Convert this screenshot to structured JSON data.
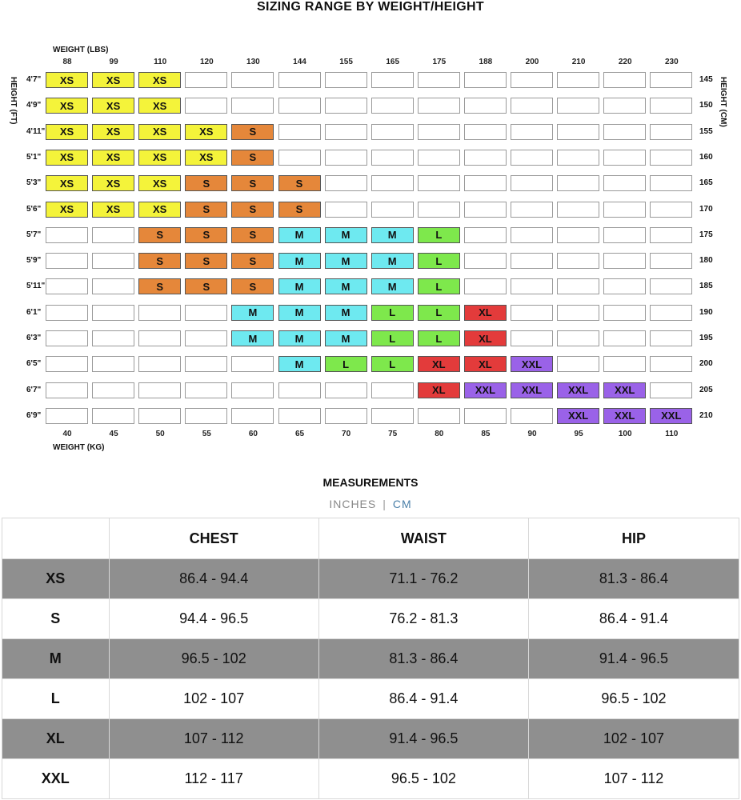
{
  "title": "SIZING RANGE BY WEIGHT/HEIGHT",
  "labels": {
    "weight_lbs": "WEIGHT (LBS)",
    "weight_kg": "WEIGHT (KG)",
    "height_ft": "HEIGHT (FT)",
    "height_cm": "HEIGHT (CM)"
  },
  "colors": {
    "XS": "#f4f33a",
    "S": "#e5873a",
    "M": "#6ee9f0",
    "L": "#7ee84c",
    "XL": "#e33b3b",
    "XXL": "#9a62e8",
    "empty": "#ffffff"
  },
  "lbs": [
    "88",
    "99",
    "110",
    "120",
    "130",
    "144",
    "155",
    "165",
    "175",
    "188",
    "200",
    "210",
    "220",
    "230"
  ],
  "kg": [
    "40",
    "45",
    "50",
    "55",
    "60",
    "65",
    "70",
    "75",
    "80",
    "85",
    "90",
    "95",
    "100",
    "110"
  ],
  "rows": [
    {
      "ft": "4'7\"",
      "cm": "145",
      "cells": [
        "XS",
        "XS",
        "XS",
        "",
        "",
        "",
        "",
        "",
        "",
        "",
        "",
        "",
        "",
        ""
      ]
    },
    {
      "ft": "4'9\"",
      "cm": "150",
      "cells": [
        "XS",
        "XS",
        "XS",
        "",
        "",
        "",
        "",
        "",
        "",
        "",
        "",
        "",
        "",
        ""
      ]
    },
    {
      "ft": "4'11\"",
      "cm": "155",
      "cells": [
        "XS",
        "XS",
        "XS",
        "XS",
        "S",
        "",
        "",
        "",
        "",
        "",
        "",
        "",
        "",
        ""
      ]
    },
    {
      "ft": "5'1\"",
      "cm": "160",
      "cells": [
        "XS",
        "XS",
        "XS",
        "XS",
        "S",
        "",
        "",
        "",
        "",
        "",
        "",
        "",
        "",
        ""
      ]
    },
    {
      "ft": "5'3\"",
      "cm": "165",
      "cells": [
        "XS",
        "XS",
        "XS",
        "S",
        "S",
        "S",
        "",
        "",
        "",
        "",
        "",
        "",
        "",
        ""
      ]
    },
    {
      "ft": "5'6\"",
      "cm": "170",
      "cells": [
        "XS",
        "XS",
        "XS",
        "S",
        "S",
        "S",
        "",
        "",
        "",
        "",
        "",
        "",
        "",
        ""
      ]
    },
    {
      "ft": "5'7\"",
      "cm": "175",
      "cells": [
        "",
        "",
        "S",
        "S",
        "S",
        "M",
        "M",
        "M",
        "L",
        "",
        "",
        "",
        "",
        ""
      ]
    },
    {
      "ft": "5'9\"",
      "cm": "180",
      "cells": [
        "",
        "",
        "S",
        "S",
        "S",
        "M",
        "M",
        "M",
        "L",
        "",
        "",
        "",
        "",
        ""
      ]
    },
    {
      "ft": "5'11\"",
      "cm": "185",
      "cells": [
        "",
        "",
        "S",
        "S",
        "S",
        "M",
        "M",
        "M",
        "L",
        "",
        "",
        "",
        "",
        ""
      ]
    },
    {
      "ft": "6'1\"",
      "cm": "190",
      "cells": [
        "",
        "",
        "",
        "",
        "M",
        "M",
        "M",
        "L",
        "L",
        "XL",
        "",
        "",
        "",
        ""
      ]
    },
    {
      "ft": "6'3\"",
      "cm": "195",
      "cells": [
        "",
        "",
        "",
        "",
        "M",
        "M",
        "M",
        "L",
        "L",
        "XL",
        "",
        "",
        "",
        ""
      ]
    },
    {
      "ft": "6'5\"",
      "cm": "200",
      "cells": [
        "",
        "",
        "",
        "",
        "",
        "M",
        "L",
        "L",
        "XL",
        "XL",
        "XXL",
        "",
        "",
        ""
      ]
    },
    {
      "ft": "6'7\"",
      "cm": "205",
      "cells": [
        "",
        "",
        "",
        "",
        "",
        "",
        "",
        "",
        "XL",
        "XXL",
        "XXL",
        "XXL",
        "XXL",
        ""
      ]
    },
    {
      "ft": "6'9\"",
      "cm": "210",
      "cells": [
        "",
        "",
        "",
        "",
        "",
        "",
        "",
        "",
        "",
        "",
        "",
        "XXL",
        "XXL",
        "XXL"
      ]
    }
  ],
  "measurements": {
    "title": "MEASUREMENTS",
    "unit_inches": "INCHES",
    "unit_sep": "|",
    "unit_cm": "CM",
    "headers": [
      "",
      "CHEST",
      "WAIST",
      "HIP"
    ],
    "rows": [
      {
        "size": "XS",
        "chest": "86.4 - 94.4",
        "waist": "71.1 - 76.2",
        "hip": "81.3 - 86.4"
      },
      {
        "size": "S",
        "chest": "94.4 - 96.5",
        "waist": "76.2 - 81.3",
        "hip": "86.4 - 91.4"
      },
      {
        "size": "M",
        "chest": "96.5 - 102",
        "waist": "81.3 - 86.4",
        "hip": "91.4 - 96.5"
      },
      {
        "size": "L",
        "chest": "102 - 107",
        "waist": "86.4 - 91.4",
        "hip": "96.5 - 102"
      },
      {
        "size": "XL",
        "chest": "107 - 112",
        "waist": "91.4 - 96.5",
        "hip": "102 - 107"
      },
      {
        "size": "XXL",
        "chest": "112 - 117",
        "waist": "96.5 - 102",
        "hip": "107 - 112"
      }
    ]
  }
}
